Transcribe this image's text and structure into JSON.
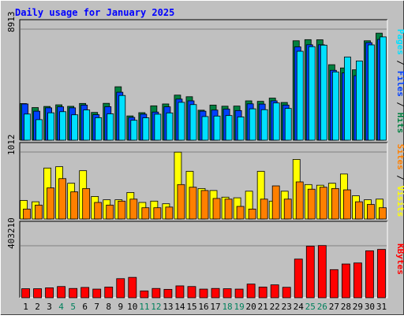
{
  "chart_data": [
    {
      "type": "bar",
      "title": "Daily usage for January 2025",
      "ymax_label": "8913",
      "legend": [
        "Pages",
        "Files",
        "Hits"
      ],
      "ylim": [
        0,
        8913
      ],
      "categories": [
        "1",
        "2",
        "3",
        "4",
        "5",
        "6",
        "7",
        "8",
        "9",
        "10",
        "11",
        "12",
        "13",
        "14",
        "15",
        "16",
        "17",
        "18",
        "19",
        "20",
        "21",
        "22",
        "23",
        "24",
        "25",
        "26",
        "27",
        "28",
        "29",
        "30",
        "31"
      ],
      "weekend_days": [
        "4",
        "5",
        "11",
        "12",
        "18",
        "19",
        "25",
        "26"
      ],
      "series": [
        {
          "name": "Hits",
          "values": [
            2940,
            2620,
            2710,
            2840,
            2720,
            2950,
            2230,
            2960,
            4290,
            1950,
            2210,
            2760,
            2910,
            3620,
            3490,
            2410,
            2820,
            2730,
            2740,
            3160,
            3120,
            3380,
            3030,
            7980,
            8070,
            8060,
            6060,
            5800,
            5650,
            7980,
            8590
          ]
        },
        {
          "name": "Files",
          "values": [
            2910,
            2330,
            2600,
            2680,
            2600,
            2820,
            2050,
            2690,
            3850,
            1830,
            2090,
            2260,
            2680,
            3300,
            3160,
            2330,
            2420,
            2500,
            2380,
            2920,
            2900,
            3160,
            2820,
            7490,
            7660,
            7660,
            5610,
            5400,
            5180,
            7830,
            8090
          ]
        },
        {
          "name": "Pages",
          "values": [
            2100,
            1650,
            2200,
            2290,
            2040,
            2430,
            1810,
            2120,
            3590,
            1600,
            1800,
            2090,
            2190,
            3040,
            2860,
            1900,
            1940,
            1980,
            1870,
            2520,
            2450,
            2990,
            2550,
            7140,
            7510,
            7630,
            5480,
            6680,
            6360,
            7650,
            8290
          ]
        }
      ]
    },
    {
      "type": "bar",
      "ymax_label": "1012",
      "legend": [
        "Sites",
        "Visits"
      ],
      "ylim": [
        0,
        1012
      ],
      "categories": [
        "1",
        "2",
        "3",
        "4",
        "5",
        "6",
        "7",
        "8",
        "9",
        "10",
        "11",
        "12",
        "13",
        "14",
        "15",
        "16",
        "17",
        "18",
        "19",
        "20",
        "21",
        "22",
        "23",
        "24",
        "25",
        "26",
        "27",
        "28",
        "29",
        "30",
        "31"
      ],
      "series": [
        {
          "name": "Visits",
          "values": [
            280,
            260,
            770,
            790,
            540,
            730,
            340,
            290,
            290,
            400,
            250,
            270,
            230,
            1010,
            720,
            460,
            430,
            330,
            320,
            420,
            720,
            270,
            420,
            900,
            520,
            510,
            540,
            680,
            350,
            290,
            300
          ]
        },
        {
          "name": "Sites",
          "values": [
            150,
            210,
            470,
            610,
            410,
            460,
            250,
            210,
            270,
            300,
            170,
            170,
            180,
            520,
            480,
            430,
            310,
            300,
            190,
            150,
            300,
            500,
            300,
            560,
            450,
            480,
            460,
            440,
            260,
            220,
            170
          ]
        }
      ]
    },
    {
      "type": "bar",
      "ymax_label": "403210",
      "legend": [
        "KBytes"
      ],
      "ylim": [
        0,
        403210
      ],
      "categories": [
        "1",
        "2",
        "3",
        "4",
        "5",
        "6",
        "7",
        "8",
        "9",
        "10",
        "11",
        "12",
        "13",
        "14",
        "15",
        "16",
        "17",
        "18",
        "19",
        "20",
        "21",
        "22",
        "23",
        "24",
        "25",
        "26",
        "27",
        "28",
        "29",
        "30",
        "31"
      ],
      "series": [
        {
          "name": "KBytes",
          "values": [
            70000,
            70000,
            77000,
            87000,
            72000,
            80000,
            67000,
            83000,
            148000,
            158000,
            53000,
            72000,
            65000,
            92000,
            87000,
            67000,
            72000,
            70000,
            67000,
            106000,
            83000,
            100000,
            81000,
            300000,
            400000,
            405000,
            218000,
            262000,
            270000,
            364000,
            375000
          ]
        }
      ]
    }
  ],
  "colors": {
    "background": "#c0c0c0",
    "plot": "#c0c0c0",
    "title": "#0000ff",
    "hits": "#008040",
    "files": "#0040ff",
    "pages": "#00e0ff",
    "visits": "#ffff00",
    "sites": "#ff8000",
    "kbytes": "#ff0000",
    "weekday_label": "#000000",
    "weekend_label": "#00805c"
  }
}
